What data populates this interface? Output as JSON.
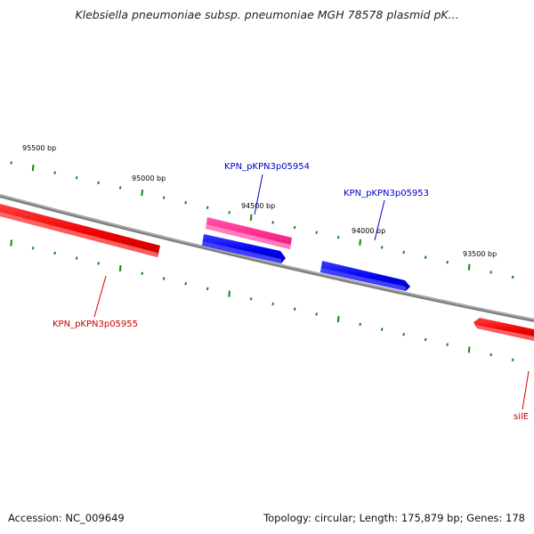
{
  "title": "Klebsiella pneumoniae subsp. pneumoniae MGH 78578 plasmid pK...",
  "accession_text": "Accession: NC_009649",
  "summary_text": "Topology: circular; Length: 175,879 bp; Genes: 178",
  "colors": {
    "backbone": "#7f7f7f",
    "tick": "#118811",
    "forward_label": "#0000cc",
    "reverse_label": "#cc0000",
    "red_gene": "#ff0000",
    "blue_gene": "#0000ff",
    "pink_gene": "#ff3399"
  },
  "ticks": [
    {
      "label": "95500 bp"
    },
    {
      "label": "95000 bp"
    },
    {
      "label": "94500 bp"
    },
    {
      "label": "94000 bp"
    },
    {
      "label": "93500 bp"
    }
  ],
  "genes": [
    {
      "name": "KPN_pKPN3p05955",
      "color": "red"
    },
    {
      "name": "KPN_pKPN3p05954",
      "color": "pink"
    },
    {
      "name": "KPN_pKPN3p05953",
      "color": "blue"
    },
    {
      "name": "silE",
      "color": "red"
    }
  ]
}
